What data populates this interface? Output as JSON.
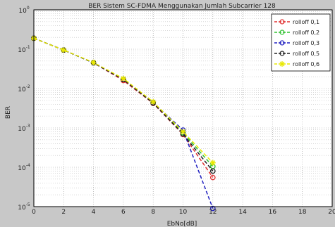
{
  "chart_data": {
    "type": "line",
    "title": "BER Sistem SC-FDMA Menggunakan Jumlah Subcarrier 128",
    "xlabel": "EbNo[dB]",
    "ylabel": "BER",
    "xlim": [
      0,
      20
    ],
    "ylim": [
      1e-05,
      1
    ],
    "yscale": "log",
    "grid": true,
    "legend_position": "top-right",
    "xticks": [
      "0",
      "2",
      "4",
      "6",
      "8",
      "10",
      "12",
      "14",
      "16",
      "18",
      "20"
    ],
    "yticks": [
      {
        "base": "10",
        "exp": "0",
        "value": 1
      },
      {
        "base": "10",
        "exp": "-1",
        "value": 0.1
      },
      {
        "base": "10",
        "exp": "-2",
        "value": 0.01
      },
      {
        "base": "10",
        "exp": "-3",
        "value": 0.001
      },
      {
        "base": "10",
        "exp": "-4",
        "value": 0.0001
      },
      {
        "base": "10",
        "exp": "-5",
        "value": 1e-05
      }
    ],
    "series": [
      {
        "name": "rolloff 0,1",
        "color": "#e03030",
        "marker": "circle",
        "x": [
          0,
          2,
          4,
          6,
          8,
          10,
          12
        ],
        "y": [
          0.19,
          0.095,
          0.045,
          0.016,
          0.0042,
          0.00068,
          5.5e-05
        ]
      },
      {
        "name": "rolloff 0,2",
        "color": "#30c030",
        "marker": "circle",
        "x": [
          0,
          2,
          4,
          6,
          8,
          10,
          12
        ],
        "y": [
          0.19,
          0.095,
          0.045,
          0.017,
          0.0043,
          0.00075,
          0.000105
        ]
      },
      {
        "name": "rolloff 0,3",
        "color": "#2020c0",
        "marker": "circle",
        "x": [
          0,
          2,
          4,
          6,
          8,
          10,
          12
        ],
        "y": [
          0.19,
          0.095,
          0.045,
          0.017,
          0.0044,
          0.00088,
          9e-06
        ]
      },
      {
        "name": "rolloff 0,5",
        "color": "#202020",
        "marker": "circle",
        "x": [
          0,
          2,
          4,
          6,
          8,
          10,
          12
        ],
        "y": [
          0.19,
          0.095,
          0.045,
          0.017,
          0.0043,
          0.0007,
          8e-05
        ]
      },
      {
        "name": "rolloff 0,6",
        "color": "#e8e800",
        "marker": "star",
        "x": [
          0,
          2,
          4,
          6,
          8,
          10,
          12
        ],
        "y": [
          0.19,
          0.095,
          0.046,
          0.018,
          0.0046,
          0.0008,
          0.00013
        ]
      }
    ]
  }
}
